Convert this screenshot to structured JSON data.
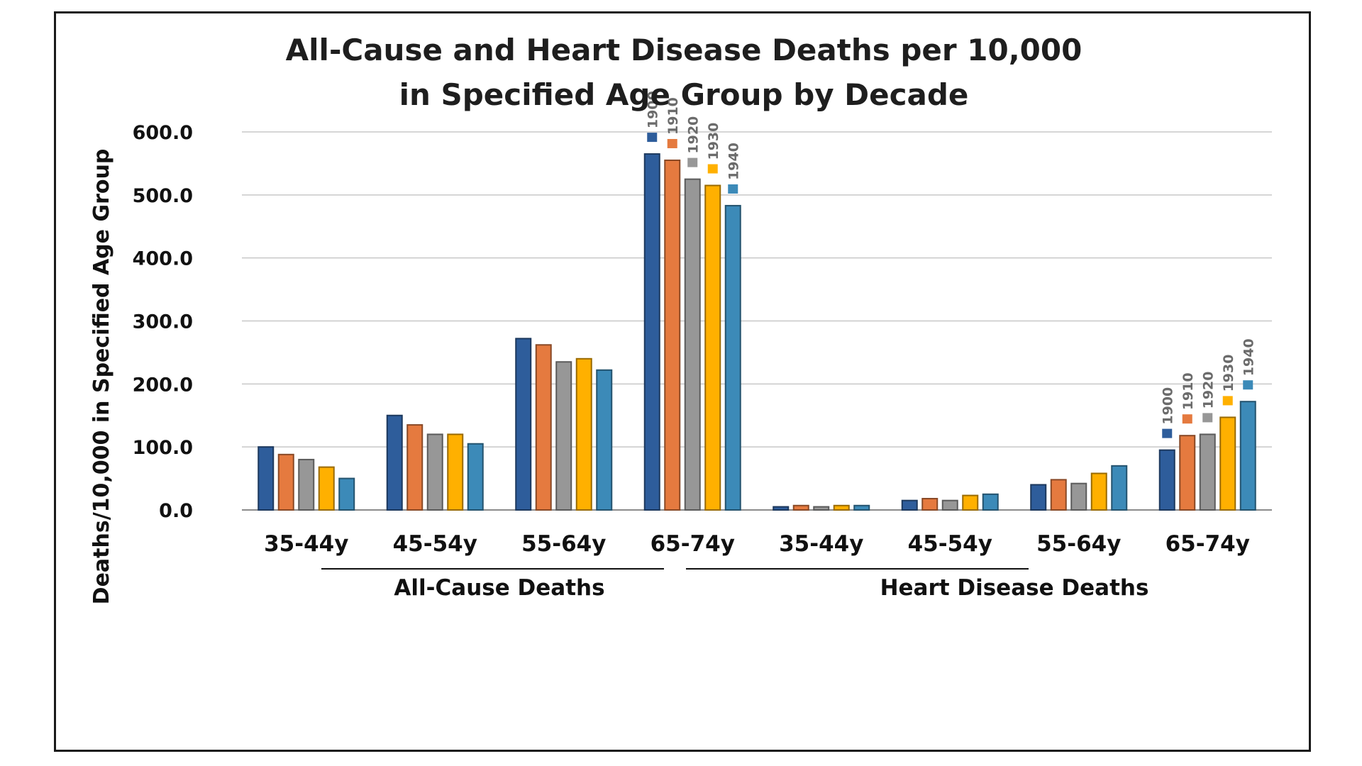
{
  "chart_data": {
    "type": "bar",
    "title": [
      "All-Cause and Heart Disease Deaths per 10,000",
      "in Specified Age Group by Decade"
    ],
    "xlabel": "",
    "ylabel": "Deaths/10,000 in Specified Age Group",
    "ylim": [
      0,
      600
    ],
    "yticks": [
      "0.0",
      "100.0",
      "200.0",
      "300.0",
      "400.0",
      "500.0",
      "600.0"
    ],
    "grid": true,
    "categories": [
      "35-44y",
      "45-54y",
      "55-64y",
      "65-74y",
      "35-44y",
      "45-54y",
      "55-64y",
      "65-74y"
    ],
    "groups": [
      {
        "label": "All-Cause Deaths",
        "span": [
          0,
          3
        ]
      },
      {
        "label": "Heart Disease Deaths",
        "span": [
          4,
          7
        ]
      }
    ],
    "series": [
      {
        "name": "1900",
        "color": "#2e5d9b",
        "values": [
          100,
          150,
          272,
          565,
          5,
          15,
          40,
          95
        ]
      },
      {
        "name": "1910",
        "color": "#e57a3f",
        "values": [
          88,
          135,
          262,
          555,
          7,
          18,
          48,
          118
        ]
      },
      {
        "name": "1920",
        "color": "#979797",
        "values": [
          80,
          120,
          235,
          525,
          5,
          15,
          42,
          120
        ]
      },
      {
        "name": "1930",
        "color": "#ffb000",
        "values": [
          68,
          120,
          240,
          515,
          7,
          23,
          58,
          147
        ]
      },
      {
        "name": "1940",
        "color": "#3c8ab8",
        "values": [
          50,
          105,
          222,
          483,
          7,
          25,
          70,
          172
        ]
      }
    ],
    "legend_labels": [
      "1900",
      "1910",
      "1920",
      "1930",
      "1940"
    ]
  }
}
